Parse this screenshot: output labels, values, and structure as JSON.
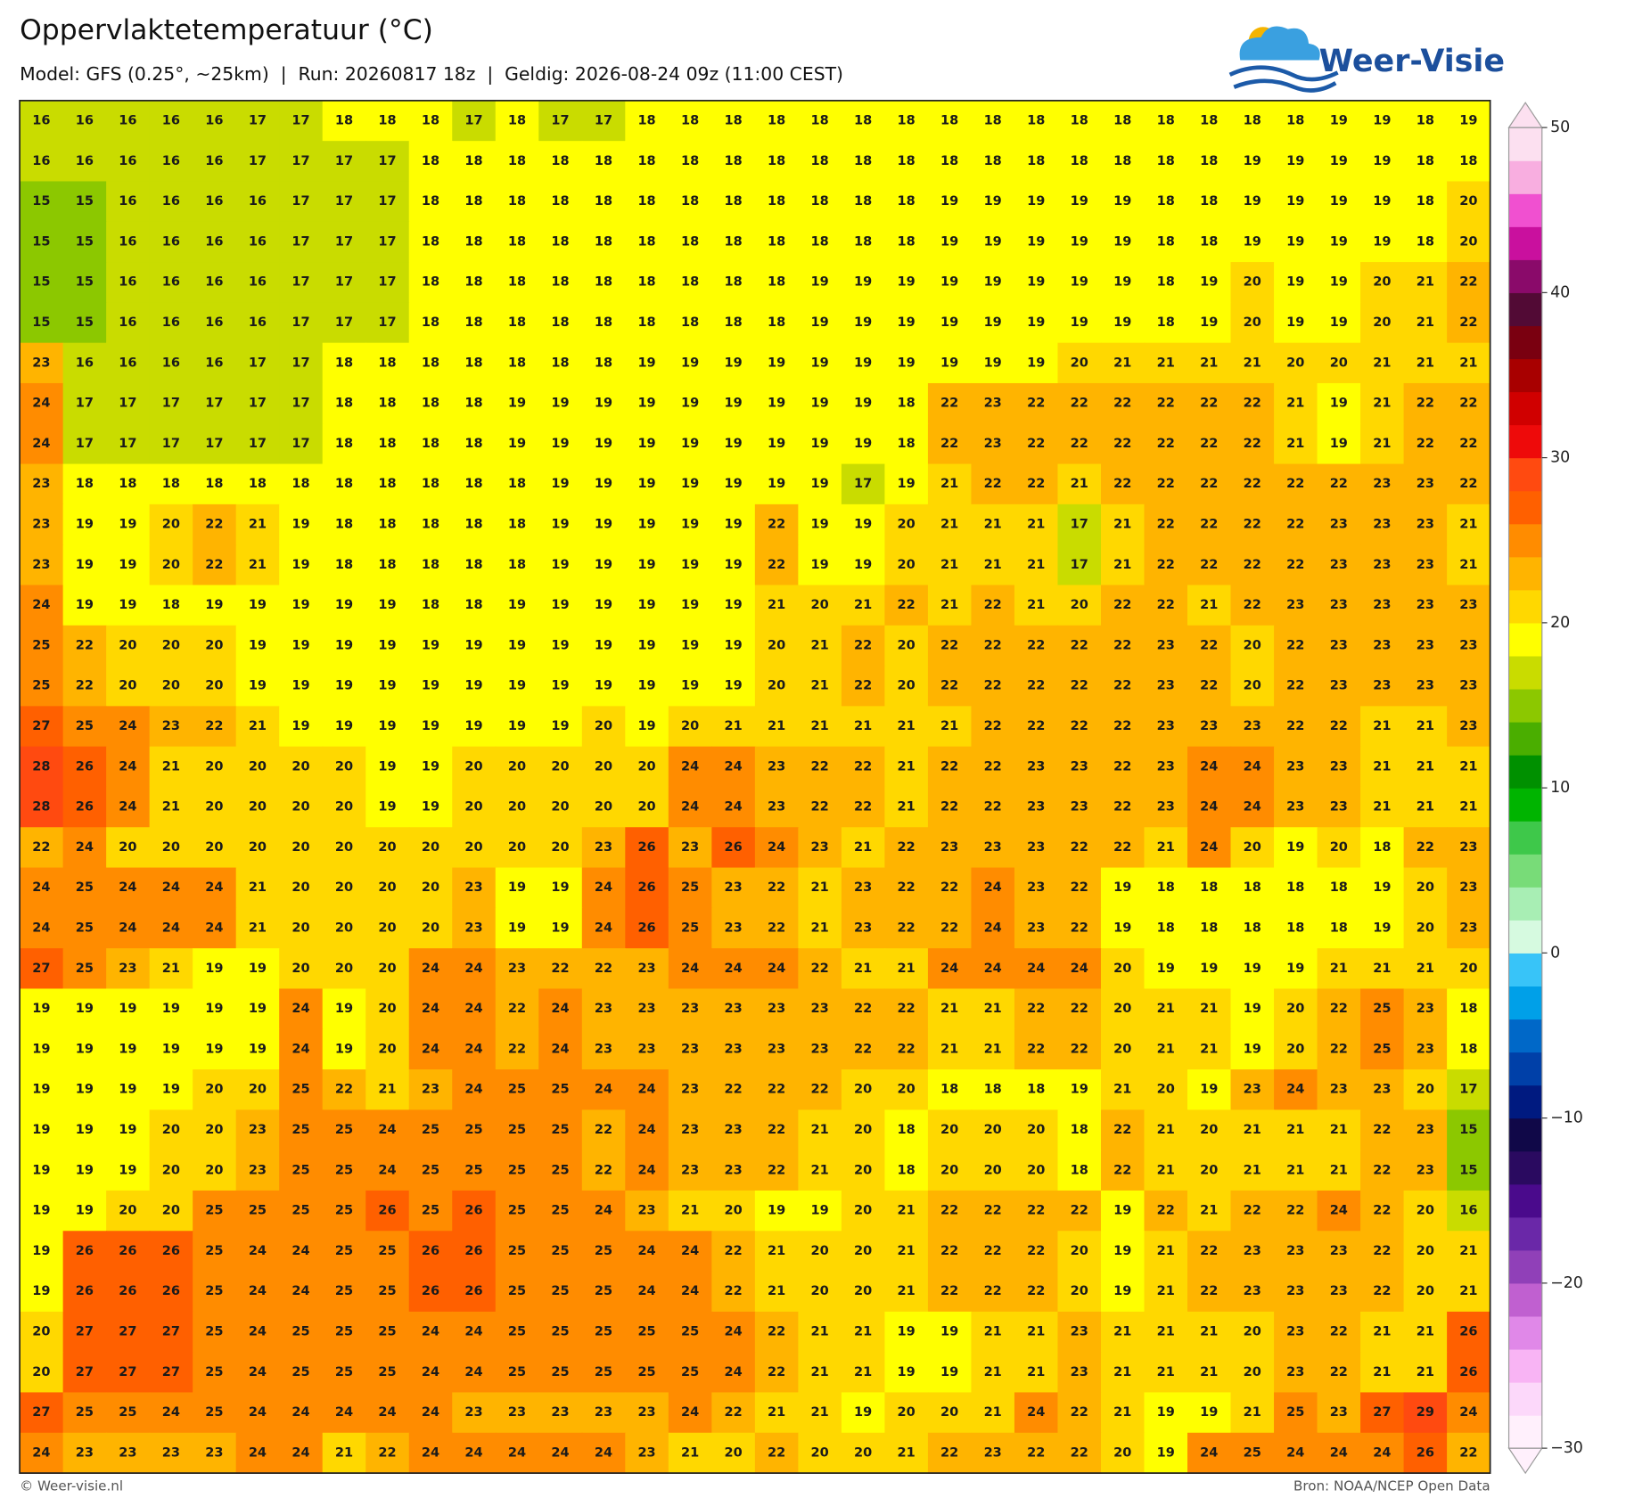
{
  "chart_data": {
    "type": "heatmap",
    "title": "Oppervlaktetemperatuur (°C)",
    "subtitle": "Model: GFS (0.25°, ~25km)  |  Run: 20260817 18z  |  Geldig: 2026-08-24 09z (11:00 CEST)",
    "logo": "Weer-Visie",
    "credit": "© Weer-visie.nl",
    "source": "Bron: NOAA/NCEP Open Data",
    "values": [
      [
        16,
        16,
        16,
        16,
        16,
        17,
        17,
        18,
        18,
        18,
        17,
        18,
        17,
        17,
        18,
        18,
        18,
        18,
        18,
        18,
        18,
        18,
        18,
        18,
        18,
        18,
        18,
        18,
        18,
        18,
        19,
        19,
        18,
        19
      ],
      [
        16,
        16,
        16,
        16,
        16,
        17,
        17,
        17,
        17,
        18,
        18,
        18,
        18,
        18,
        18,
        18,
        18,
        18,
        18,
        18,
        18,
        18,
        18,
        18,
        18,
        18,
        18,
        18,
        19,
        19,
        19,
        19,
        18,
        18
      ],
      [
        15,
        15,
        16,
        16,
        16,
        16,
        17,
        17,
        17,
        18,
        18,
        18,
        18,
        18,
        18,
        18,
        18,
        18,
        18,
        18,
        18,
        19,
        19,
        19,
        19,
        19,
        18,
        18,
        19,
        19,
        19,
        19,
        18,
        20
      ],
      [
        15,
        15,
        16,
        16,
        16,
        16,
        17,
        17,
        17,
        18,
        18,
        18,
        18,
        18,
        18,
        18,
        18,
        18,
        18,
        18,
        18,
        19,
        19,
        19,
        19,
        19,
        18,
        18,
        19,
        19,
        19,
        19,
        18,
        20
      ],
      [
        15,
        15,
        16,
        16,
        16,
        16,
        17,
        17,
        17,
        18,
        18,
        18,
        18,
        18,
        18,
        18,
        18,
        18,
        19,
        19,
        19,
        19,
        19,
        19,
        19,
        19,
        18,
        19,
        20,
        19,
        19,
        20,
        21,
        22
      ],
      [
        15,
        15,
        16,
        16,
        16,
        16,
        17,
        17,
        17,
        18,
        18,
        18,
        18,
        18,
        18,
        18,
        18,
        18,
        19,
        19,
        19,
        19,
        19,
        19,
        19,
        19,
        18,
        19,
        20,
        19,
        19,
        20,
        21,
        22
      ],
      [
        23,
        16,
        16,
        16,
        16,
        17,
        17,
        18,
        18,
        18,
        18,
        18,
        18,
        18,
        19,
        19,
        19,
        19,
        19,
        19,
        19,
        19,
        19,
        19,
        20,
        21,
        21,
        21,
        21,
        20,
        20,
        21,
        21,
        21
      ],
      [
        24,
        17,
        17,
        17,
        17,
        17,
        17,
        18,
        18,
        18,
        18,
        19,
        19,
        19,
        19,
        19,
        19,
        19,
        19,
        19,
        18,
        22,
        23,
        22,
        22,
        22,
        22,
        22,
        22,
        21,
        19,
        21,
        22,
        22
      ],
      [
        24,
        17,
        17,
        17,
        17,
        17,
        17,
        18,
        18,
        18,
        18,
        19,
        19,
        19,
        19,
        19,
        19,
        19,
        19,
        19,
        18,
        22,
        23,
        22,
        22,
        22,
        22,
        22,
        22,
        21,
        19,
        21,
        22,
        22
      ],
      [
        23,
        18,
        18,
        18,
        18,
        18,
        18,
        18,
        18,
        18,
        18,
        18,
        19,
        19,
        19,
        19,
        19,
        19,
        19,
        17,
        19,
        21,
        22,
        22,
        21,
        22,
        22,
        22,
        22,
        22,
        22,
        23,
        23,
        22
      ],
      [
        23,
        19,
        19,
        20,
        22,
        21,
        19,
        18,
        18,
        18,
        18,
        18,
        19,
        19,
        19,
        19,
        19,
        22,
        19,
        19,
        20,
        21,
        21,
        21,
        17,
        21,
        22,
        22,
        22,
        22,
        23,
        23,
        23,
        21
      ],
      [
        23,
        19,
        19,
        20,
        22,
        21,
        19,
        18,
        18,
        18,
        18,
        18,
        19,
        19,
        19,
        19,
        19,
        22,
        19,
        19,
        20,
        21,
        21,
        21,
        17,
        21,
        22,
        22,
        22,
        22,
        23,
        23,
        23,
        21
      ],
      [
        24,
        19,
        19,
        18,
        19,
        19,
        19,
        19,
        19,
        18,
        18,
        19,
        19,
        19,
        19,
        19,
        19,
        21,
        20,
        21,
        22,
        21,
        22,
        21,
        20,
        22,
        22,
        21,
        22,
        23,
        23,
        23,
        23,
        23
      ],
      [
        25,
        22,
        20,
        20,
        20,
        19,
        19,
        19,
        19,
        19,
        19,
        19,
        19,
        19,
        19,
        19,
        19,
        20,
        21,
        22,
        20,
        22,
        22,
        22,
        22,
        22,
        23,
        22,
        20,
        22,
        23,
        23,
        23,
        23
      ],
      [
        25,
        22,
        20,
        20,
        20,
        19,
        19,
        19,
        19,
        19,
        19,
        19,
        19,
        19,
        19,
        19,
        19,
        20,
        21,
        22,
        20,
        22,
        22,
        22,
        22,
        22,
        23,
        22,
        20,
        22,
        23,
        23,
        23,
        23
      ],
      [
        27,
        25,
        24,
        23,
        22,
        21,
        19,
        19,
        19,
        19,
        19,
        19,
        19,
        20,
        19,
        20,
        21,
        21,
        21,
        21,
        21,
        21,
        22,
        22,
        22,
        22,
        23,
        23,
        23,
        22,
        22,
        21,
        21,
        23
      ],
      [
        28,
        26,
        24,
        21,
        20,
        20,
        20,
        20,
        19,
        19,
        20,
        20,
        20,
        20,
        20,
        24,
        24,
        23,
        22,
        22,
        21,
        22,
        22,
        23,
        23,
        22,
        23,
        24,
        24,
        23,
        23,
        21,
        21,
        21
      ],
      [
        28,
        26,
        24,
        21,
        20,
        20,
        20,
        20,
        19,
        19,
        20,
        20,
        20,
        20,
        20,
        24,
        24,
        23,
        22,
        22,
        21,
        22,
        22,
        23,
        23,
        22,
        23,
        24,
        24,
        23,
        23,
        21,
        21,
        21
      ],
      [
        22,
        24,
        20,
        20,
        20,
        20,
        20,
        20,
        20,
        20,
        20,
        20,
        20,
        23,
        26,
        23,
        26,
        24,
        23,
        21,
        22,
        23,
        23,
        23,
        22,
        22,
        21,
        24,
        20,
        19,
        20,
        18,
        22,
        23
      ],
      [
        24,
        25,
        24,
        24,
        24,
        21,
        20,
        20,
        20,
        20,
        23,
        19,
        19,
        24,
        26,
        25,
        23,
        22,
        21,
        23,
        22,
        22,
        24,
        23,
        22,
        19,
        18,
        18,
        18,
        18,
        18,
        19,
        20,
        23
      ],
      [
        24,
        25,
        24,
        24,
        24,
        21,
        20,
        20,
        20,
        20,
        23,
        19,
        19,
        24,
        26,
        25,
        23,
        22,
        21,
        23,
        22,
        22,
        24,
        23,
        22,
        19,
        18,
        18,
        18,
        18,
        18,
        19,
        20,
        23
      ],
      [
        27,
        25,
        23,
        21,
        19,
        19,
        20,
        20,
        20,
        24,
        24,
        23,
        22,
        22,
        23,
        24,
        24,
        24,
        22,
        21,
        21,
        24,
        24,
        24,
        24,
        20,
        19,
        19,
        19,
        19,
        21,
        21,
        21,
        20
      ],
      [
        19,
        19,
        19,
        19,
        19,
        19,
        24,
        19,
        20,
        24,
        24,
        22,
        24,
        23,
        23,
        23,
        23,
        23,
        23,
        22,
        22,
        21,
        21,
        22,
        22,
        20,
        21,
        21,
        19,
        20,
        22,
        25,
        23,
        18
      ],
      [
        19,
        19,
        19,
        19,
        19,
        19,
        24,
        19,
        20,
        24,
        24,
        22,
        24,
        23,
        23,
        23,
        23,
        23,
        23,
        22,
        22,
        21,
        21,
        22,
        22,
        20,
        21,
        21,
        19,
        20,
        22,
        25,
        23,
        18
      ],
      [
        19,
        19,
        19,
        19,
        20,
        20,
        25,
        22,
        21,
        23,
        24,
        25,
        25,
        24,
        24,
        23,
        22,
        22,
        22,
        20,
        20,
        18,
        18,
        18,
        19,
        21,
        20,
        19,
        23,
        24,
        23,
        23,
        20,
        17
      ],
      [
        19,
        19,
        19,
        20,
        20,
        23,
        25,
        25,
        24,
        25,
        25,
        25,
        25,
        22,
        24,
        23,
        23,
        22,
        21,
        20,
        18,
        20,
        20,
        20,
        18,
        22,
        21,
        20,
        21,
        21,
        21,
        22,
        23,
        15
      ],
      [
        19,
        19,
        19,
        20,
        20,
        23,
        25,
        25,
        24,
        25,
        25,
        25,
        25,
        22,
        24,
        23,
        23,
        22,
        21,
        20,
        18,
        20,
        20,
        20,
        18,
        22,
        21,
        20,
        21,
        21,
        21,
        22,
        23,
        15
      ],
      [
        19,
        19,
        20,
        20,
        25,
        25,
        25,
        25,
        26,
        25,
        26,
        25,
        25,
        24,
        23,
        21,
        20,
        19,
        19,
        20,
        21,
        22,
        22,
        22,
        22,
        19,
        22,
        21,
        22,
        22,
        24,
        22,
        20,
        16
      ],
      [
        19,
        26,
        26,
        26,
        25,
        24,
        24,
        25,
        25,
        26,
        26,
        25,
        25,
        25,
        24,
        24,
        22,
        21,
        20,
        20,
        21,
        22,
        22,
        22,
        20,
        19,
        21,
        22,
        23,
        23,
        23,
        22,
        20,
        21
      ],
      [
        19,
        26,
        26,
        26,
        25,
        24,
        24,
        25,
        25,
        26,
        26,
        25,
        25,
        25,
        24,
        24,
        22,
        21,
        20,
        20,
        21,
        22,
        22,
        22,
        20,
        19,
        21,
        22,
        23,
        23,
        23,
        22,
        20,
        21
      ],
      [
        20,
        27,
        27,
        27,
        25,
        24,
        25,
        25,
        25,
        24,
        24,
        25,
        25,
        25,
        25,
        25,
        24,
        22,
        21,
        21,
        19,
        19,
        21,
        21,
        23,
        21,
        21,
        21,
        20,
        23,
        22,
        21,
        21,
        26
      ],
      [
        20,
        27,
        27,
        27,
        25,
        24,
        25,
        25,
        25,
        24,
        24,
        25,
        25,
        25,
        25,
        25,
        24,
        22,
        21,
        21,
        19,
        19,
        21,
        21,
        23,
        21,
        21,
        21,
        20,
        23,
        22,
        21,
        21,
        26
      ],
      [
        27,
        25,
        25,
        24,
        25,
        24,
        24,
        24,
        24,
        24,
        23,
        23,
        23,
        23,
        23,
        24,
        22,
        21,
        21,
        19,
        20,
        20,
        21,
        24,
        22,
        21,
        19,
        19,
        21,
        25,
        23,
        27,
        29,
        24
      ],
      [
        24,
        23,
        23,
        23,
        23,
        24,
        24,
        21,
        22,
        24,
        24,
        24,
        24,
        24,
        23,
        21,
        20,
        22,
        20,
        20,
        21,
        22,
        23,
        22,
        22,
        20,
        19,
        24,
        25,
        24,
        24,
        24,
        26,
        22
      ]
    ],
    "colorbar": {
      "lim": [
        -30,
        50
      ],
      "ticks": [
        50,
        40,
        30,
        20,
        10,
        0,
        {
          "value": -10,
          "label": "−10"
        },
        {
          "value": -20,
          "label": "−20"
        },
        {
          "value": -30,
          "label": "−30"
        }
      ],
      "colors": [
        "#fff0fc",
        "#fcd8fa",
        "#f8b4f4",
        "#e088e8",
        "#c060d0",
        "#9040b8",
        "#6a28a8",
        "#4a0a8c",
        "#2a0a60",
        "#100848",
        "#001a80",
        "#0040a8",
        "#0068c8",
        "#00a0e8",
        "#38c4f8",
        "#d6fae0",
        "#a8eeb4",
        "#78dc78",
        "#3ec84a",
        "#00b400",
        "#009000",
        "#4aae00",
        "#8cc800",
        "#c9dc00",
        "#ffff00",
        "#ffd800",
        "#ffb400",
        "#ff8c00",
        "#ff6000",
        "#ff4a10",
        "#ee0a0a",
        "#d00000",
        "#a80000",
        "#7a0010",
        "#520a35",
        "#8a0a6a",
        "#c9109e",
        "#f050d0",
        "#f8aee0",
        "#fce0f0"
      ]
    }
  }
}
